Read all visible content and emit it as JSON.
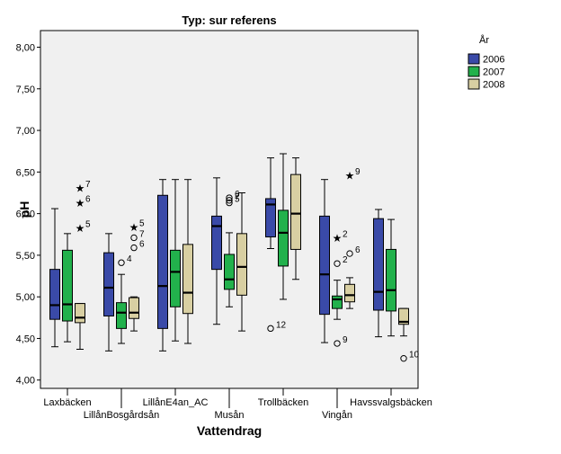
{
  "chart_data": {
    "type": "box",
    "title": "Typ: sur referens",
    "xlabel": "Vattendrag",
    "ylabel": "pH",
    "ylim": [
      3.9,
      8.2
    ],
    "y_ticks": [
      "4,00",
      "4,50",
      "5,00",
      "5,50",
      "6,00",
      "6,50",
      "7,00",
      "7,50",
      "8,00"
    ],
    "y_tick_values": [
      4.0,
      4.5,
      5.0,
      5.5,
      6.0,
      6.5,
      7.0,
      7.5,
      8.0
    ],
    "categories": [
      "Laxbäcken",
      "LillånBosgårdsån",
      "LillånE4an_AC",
      "Musån",
      "Trollbäcken",
      "Vingån",
      "Havssvalgsbäcken"
    ],
    "legend": {
      "title": "År",
      "placement": "right",
      "entries": [
        "2006",
        "2007",
        "2008"
      ]
    },
    "colors": [
      "#3a4aa8",
      "#22b14c",
      "#d8cfa2"
    ],
    "series": [
      {
        "name": "2006",
        "boxes": [
          {
            "min": 4.4,
            "q1": 4.73,
            "median": 4.9,
            "q3": 5.33,
            "max": 6.06
          },
          {
            "min": 4.35,
            "q1": 4.77,
            "median": 5.11,
            "q3": 5.53,
            "max": 5.76
          },
          {
            "min": 4.35,
            "q1": 4.62,
            "median": 5.13,
            "q3": 6.22,
            "max": 6.41
          },
          {
            "min": 4.67,
            "q1": 5.33,
            "median": 5.85,
            "q3": 5.97,
            "max": 6.43
          },
          {
            "min": 5.58,
            "q1": 5.72,
            "median": 6.11,
            "q3": 6.18,
            "max": 6.67
          },
          {
            "min": 4.45,
            "q1": 4.79,
            "median": 5.27,
            "q3": 5.97,
            "max": 6.41
          },
          {
            "min": 4.52,
            "q1": 4.84,
            "median": 5.06,
            "q3": 5.94,
            "max": 6.05
          }
        ]
      },
      {
        "name": "2007",
        "boxes": [
          {
            "min": 4.46,
            "q1": 4.71,
            "median": 4.91,
            "q3": 5.56,
            "max": 5.76
          },
          {
            "min": 4.44,
            "q1": 4.62,
            "median": 4.81,
            "q3": 4.93,
            "max": 5.27
          },
          {
            "min": 4.47,
            "q1": 4.88,
            "median": 5.3,
            "q3": 5.56,
            "max": 6.41
          },
          {
            "min": 4.88,
            "q1": 5.09,
            "median": 5.21,
            "q3": 5.51,
            "max": 5.77
          },
          {
            "min": 4.97,
            "q1": 5.37,
            "median": 5.77,
            "q3": 6.04,
            "max": 6.72
          },
          {
            "min": 4.73,
            "q1": 4.86,
            "median": 4.97,
            "q3": 5.01,
            "max": 5.2
          },
          {
            "min": 4.53,
            "q1": 4.83,
            "median": 5.08,
            "q3": 5.57,
            "max": 5.93
          }
        ]
      },
      {
        "name": "2008",
        "boxes": [
          {
            "min": 4.37,
            "q1": 4.69,
            "median": 4.75,
            "q3": 4.92,
            "max": 4.92
          },
          {
            "min": 4.59,
            "q1": 4.74,
            "median": 4.81,
            "q3": 4.99,
            "max": 5.0
          },
          {
            "min": 4.44,
            "q1": 4.8,
            "median": 5.05,
            "q3": 5.63,
            "max": 6.41
          },
          {
            "min": 4.59,
            "q1": 5.02,
            "median": 5.36,
            "q3": 5.76,
            "max": 6.25
          },
          {
            "min": 5.21,
            "q1": 5.57,
            "median": 6.0,
            "q3": 6.47,
            "max": 6.67
          },
          {
            "min": 4.86,
            "q1": 4.94,
            "median": 5.02,
            "q3": 5.15,
            "max": 5.23
          },
          {
            "min": 4.53,
            "q1": 4.67,
            "median": 4.7,
            "q3": 4.86,
            "max": 4.86
          }
        ]
      }
    ],
    "outliers": [
      {
        "category": 0,
        "series": 2,
        "value": 6.31,
        "marker": "star",
        "label": "7"
      },
      {
        "category": 0,
        "series": 2,
        "value": 6.13,
        "marker": "star",
        "label": "6"
      },
      {
        "category": 0,
        "series": 2,
        "value": 5.83,
        "marker": "star",
        "label": "5"
      },
      {
        "category": 1,
        "series": 1,
        "value": 5.41,
        "marker": "circle",
        "label": "4"
      },
      {
        "category": 1,
        "series": 2,
        "value": 5.84,
        "marker": "star",
        "label": "5"
      },
      {
        "category": 1,
        "series": 2,
        "value": 5.71,
        "marker": "circle",
        "label": "7"
      },
      {
        "category": 1,
        "series": 2,
        "value": 5.59,
        "marker": "circle",
        "label": "6"
      },
      {
        "category": 3,
        "series": 1,
        "value": 6.19,
        "marker": "circle",
        "label": "6"
      },
      {
        "category": 3,
        "series": 1,
        "value": 6.16,
        "marker": "circle",
        "label": "7"
      },
      {
        "category": 3,
        "series": 1,
        "value": 6.13,
        "marker": "circle",
        "label": "5"
      },
      {
        "category": 4,
        "series": 0,
        "value": 4.62,
        "marker": "circle",
        "label": "12"
      },
      {
        "category": 5,
        "series": 1,
        "value": 5.71,
        "marker": "star",
        "label": "2"
      },
      {
        "category": 5,
        "series": 1,
        "value": 5.4,
        "marker": "circle",
        "label": "2"
      },
      {
        "category": 5,
        "series": 1,
        "value": 4.44,
        "marker": "circle",
        "label": "9"
      },
      {
        "category": 5,
        "series": 2,
        "value": 6.46,
        "marker": "star",
        "label": "9"
      },
      {
        "category": 5,
        "series": 2,
        "value": 5.52,
        "marker": "circle",
        "label": "6"
      },
      {
        "category": 6,
        "series": 2,
        "value": 4.26,
        "marker": "circle",
        "label": "10"
      }
    ],
    "grid": false
  }
}
